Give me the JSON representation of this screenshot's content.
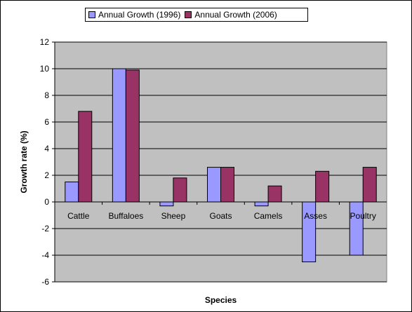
{
  "chart_data": {
    "type": "bar",
    "title": "",
    "xlabel": "Species",
    "ylabel": "Growth rate (%)",
    "categories": [
      "Cattle",
      "Buffaloes",
      "Sheep",
      "Goats",
      "Camels",
      "Asses",
      "Poultry"
    ],
    "series": [
      {
        "name": "Annual Growth (1996)",
        "color": "#9999FF",
        "values": [
          1.5,
          10.0,
          -0.3,
          2.6,
          -0.3,
          -4.5,
          -4.0
        ]
      },
      {
        "name": "Annual Growth (2006)",
        "color": "#993366",
        "values": [
          6.8,
          9.9,
          1.8,
          2.6,
          1.2,
          2.3,
          2.6
        ]
      }
    ],
    "ylim": [
      -6,
      12
    ],
    "yticks": [
      -6,
      -4,
      -2,
      0,
      2,
      4,
      6,
      8,
      10,
      12
    ],
    "grid": true,
    "plot_background": "#C0C0C0",
    "legend_position": "top"
  }
}
